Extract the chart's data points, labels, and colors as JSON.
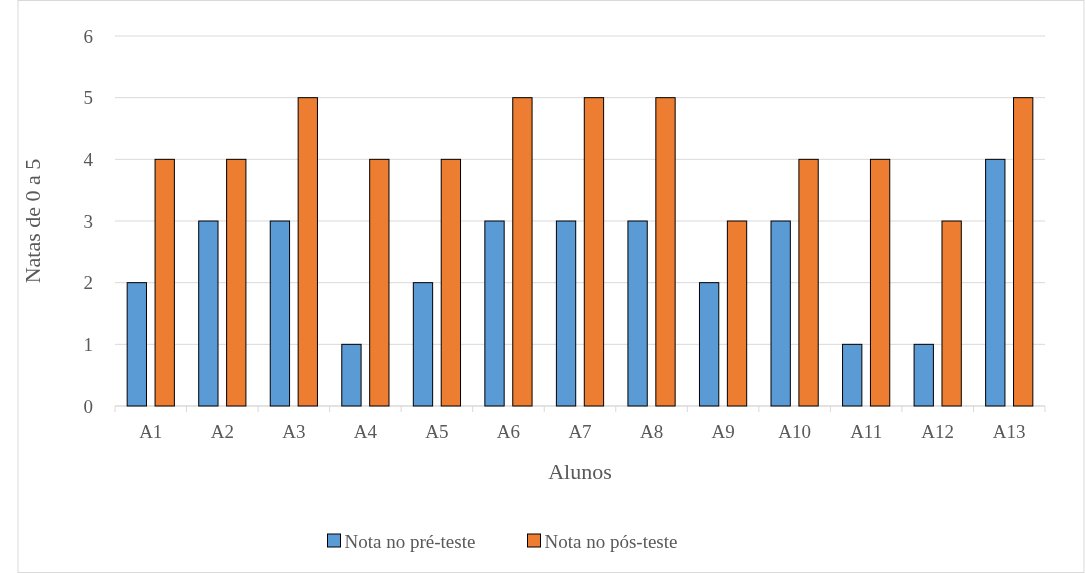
{
  "chart_data": {
    "type": "bar",
    "xlabel": "Alunos",
    "ylabel": "Natas de 0 a 5",
    "categories": [
      "A1",
      "A2",
      "A3",
      "A4",
      "A5",
      "A6",
      "A7",
      "A8",
      "A9",
      "A10",
      "A11",
      "A12",
      "A13"
    ],
    "series": [
      {
        "name": "Nota no pré-teste",
        "color": "#5b9bd5",
        "values": [
          2,
          3,
          3,
          1,
          2,
          3,
          3,
          3,
          2,
          3,
          1,
          1,
          4
        ]
      },
      {
        "name": "Nota no pós-teste",
        "color": "#ed7d31",
        "values": [
          4,
          4,
          5,
          4,
          4,
          5,
          5,
          5,
          3,
          4,
          4,
          3,
          5
        ]
      }
    ],
    "ylim": [
      0,
      6
    ],
    "yticks": [
      0,
      1,
      2,
      3,
      4,
      5,
      6
    ],
    "grid": "y",
    "legend": "bottom"
  }
}
